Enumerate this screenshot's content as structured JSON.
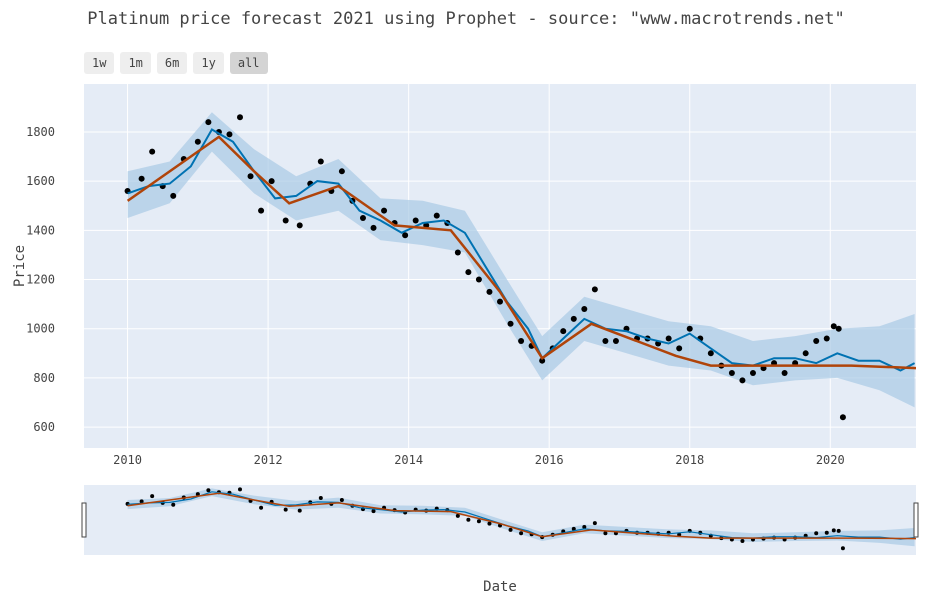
{
  "title": "Platinum price forecast 2021 using Prophet - source: \"www.macrotrends.net\"",
  "range_selector": {
    "buttons": [
      "1w",
      "1m",
      "6m",
      "1y",
      "all"
    ],
    "active": "all"
  },
  "colors": {
    "plot_bg": "#e5ecf6",
    "grid": "#ffffff",
    "actual_points": "#000000",
    "forecast_line": "#0072b2",
    "trend_line": "#b0440a",
    "uncertainty_band": "#a9cbe6"
  },
  "chart_data": {
    "type": "scatter",
    "title": "Platinum price forecast 2021 using Prophet - source: \"www.macrotrends.net\"",
    "xlabel": "Date",
    "ylabel": "Price",
    "xlim": [
      2009.38,
      2021.22
    ],
    "ylim": [
      515,
      1995
    ],
    "x_ticks": [
      "2010",
      "2012",
      "2014",
      "2016",
      "2018",
      "2020"
    ],
    "y_ticks": [
      600,
      800,
      1000,
      1200,
      1400,
      1600,
      1800
    ],
    "grid": true,
    "legend": "none",
    "series": [
      {
        "kind": "actual",
        "style": "markers",
        "x": [
          2010.0,
          2010.2,
          2010.35,
          2010.5,
          2010.65,
          2010.8,
          2011.0,
          2011.15,
          2011.3,
          2011.45,
          2011.6,
          2011.75,
          2011.9,
          2012.05,
          2012.25,
          2012.45,
          2012.6,
          2012.75,
          2012.9,
          2013.05,
          2013.2,
          2013.35,
          2013.5,
          2013.65,
          2013.8,
          2013.95,
          2014.1,
          2014.25,
          2014.4,
          2014.55,
          2014.7,
          2014.85,
          2015.0,
          2015.15,
          2015.3,
          2015.45,
          2015.6,
          2015.75,
          2015.9,
          2016.05,
          2016.2,
          2016.35,
          2016.5,
          2016.65,
          2016.8,
          2016.95,
          2017.1,
          2017.25,
          2017.4,
          2017.55,
          2017.7,
          2017.85,
          2018.0,
          2018.15,
          2018.3,
          2018.45,
          2018.6,
          2018.75,
          2018.9,
          2019.05,
          2019.2,
          2019.35,
          2019.5,
          2019.65,
          2019.8,
          2019.95,
          2020.05,
          2020.12,
          2020.18
        ],
        "y": [
          1560,
          1610,
          1720,
          1580,
          1540,
          1690,
          1760,
          1840,
          1800,
          1790,
          1860,
          1620,
          1480,
          1600,
          1440,
          1420,
          1590,
          1680,
          1560,
          1640,
          1520,
          1450,
          1410,
          1480,
          1430,
          1380,
          1440,
          1420,
          1460,
          1430,
          1310,
          1230,
          1200,
          1150,
          1110,
          1020,
          950,
          930,
          870,
          920,
          990,
          1040,
          1080,
          1160,
          950,
          950,
          1000,
          960,
          960,
          940,
          960,
          920,
          1000,
          960,
          900,
          850,
          820,
          790,
          820,
          840,
          860,
          820,
          860,
          900,
          950,
          960,
          1010,
          1000,
          640
        ]
      },
      {
        "kind": "forecast",
        "style": "line",
        "x": [
          2010.0,
          2010.3,
          2010.6,
          2010.9,
          2011.2,
          2011.5,
          2011.8,
          2012.1,
          2012.4,
          2012.7,
          2013.0,
          2013.3,
          2013.6,
          2013.9,
          2014.2,
          2014.5,
          2014.8,
          2015.1,
          2015.4,
          2015.7,
          2015.9,
          2016.2,
          2016.5,
          2016.8,
          2017.1,
          2017.4,
          2017.7,
          2018.0,
          2018.3,
          2018.6,
          2018.9,
          2019.2,
          2019.5,
          2019.8,
          2020.1,
          2020.4,
          2020.7,
          2021.0,
          2021.2
        ],
        "y": [
          1550,
          1580,
          1590,
          1660,
          1810,
          1760,
          1640,
          1530,
          1540,
          1600,
          1590,
          1480,
          1440,
          1390,
          1430,
          1440,
          1390,
          1250,
          1110,
          1000,
          880,
          960,
          1040,
          1000,
          990,
          960,
          940,
          980,
          920,
          860,
          850,
          880,
          880,
          860,
          900,
          870,
          870,
          830,
          860
        ]
      },
      {
        "kind": "trend",
        "style": "line",
        "x": [
          2010.0,
          2011.3,
          2011.8,
          2012.3,
          2013.0,
          2013.8,
          2014.6,
          2015.3,
          2015.9,
          2016.6,
          2017.8,
          2018.3,
          2019.3,
          2020.3,
          2021.22
        ],
        "y": [
          1520,
          1780,
          1640,
          1510,
          1580,
          1420,
          1400,
          1150,
          880,
          1020,
          890,
          850,
          850,
          850,
          840
        ]
      },
      {
        "kind": "uncertainty_band",
        "style": "fill",
        "x": [
          2010.0,
          2010.6,
          2011.2,
          2011.8,
          2012.4,
          2013.0,
          2013.6,
          2014.2,
          2014.8,
          2015.4,
          2015.9,
          2016.5,
          2017.1,
          2017.7,
          2018.3,
          2018.9,
          2019.5,
          2020.1,
          2020.7,
          2021.2
        ],
        "lower": [
          1450,
          1510,
          1720,
          1550,
          1440,
          1480,
          1360,
          1340,
          1310,
          1020,
          790,
          950,
          900,
          850,
          830,
          770,
          790,
          800,
          750,
          680
        ],
        "upper": [
          1640,
          1680,
          1880,
          1730,
          1620,
          1690,
          1530,
          1520,
          1480,
          1200,
          970,
          1130,
          1080,
          1030,
          1010,
          950,
          970,
          1000,
          1010,
          1060
        ]
      }
    ]
  },
  "range_slider": {
    "description_visible": false
  }
}
